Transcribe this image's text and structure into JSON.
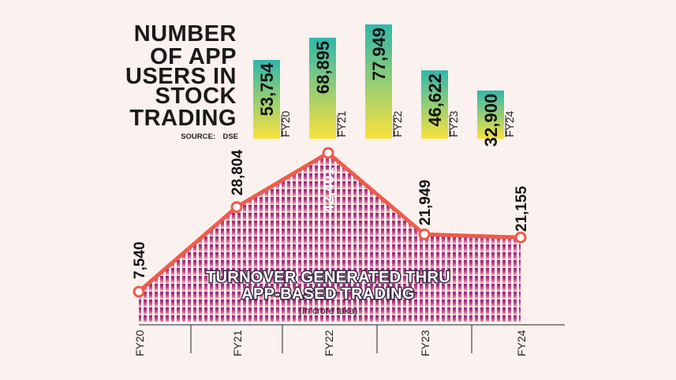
{
  "chart_data": [
    {
      "type": "bar",
      "title_lines": [
        "NUMBER",
        "OF APP",
        "USERS IN",
        "STOCK",
        "TRADING"
      ],
      "source_label": "SOURCE:",
      "source_value": "DSE",
      "categories": [
        "FY20",
        "FY21",
        "FY22",
        "FY23",
        "FY24"
      ],
      "values": [
        53754,
        68895,
        77949,
        46622,
        32900
      ],
      "value_labels": [
        "53,754",
        "68,895",
        "77,949",
        "46,622",
        "32,900"
      ],
      "colors": {
        "top": "#2fb7ad",
        "bottom": "#f9e23c"
      }
    },
    {
      "type": "area",
      "title_lines": [
        "TURNOVER GENERATED THRU",
        "APP-BASED TRADING"
      ],
      "subtitle": "(In crore taka)",
      "categories": [
        "FY20",
        "FY21",
        "FY22",
        "FY23",
        "FY24"
      ],
      "values": [
        7540,
        28804,
        42401,
        21949,
        21155
      ],
      "value_labels": [
        "7,540",
        "28,804",
        "42,401",
        "21,949",
        "21,155"
      ],
      "colors": {
        "line": "#ef5b4c",
        "fill_top": "#8c1d73",
        "fill_bottom": "#f6d9dc",
        "marker_fill": "#ffffff"
      }
    }
  ]
}
